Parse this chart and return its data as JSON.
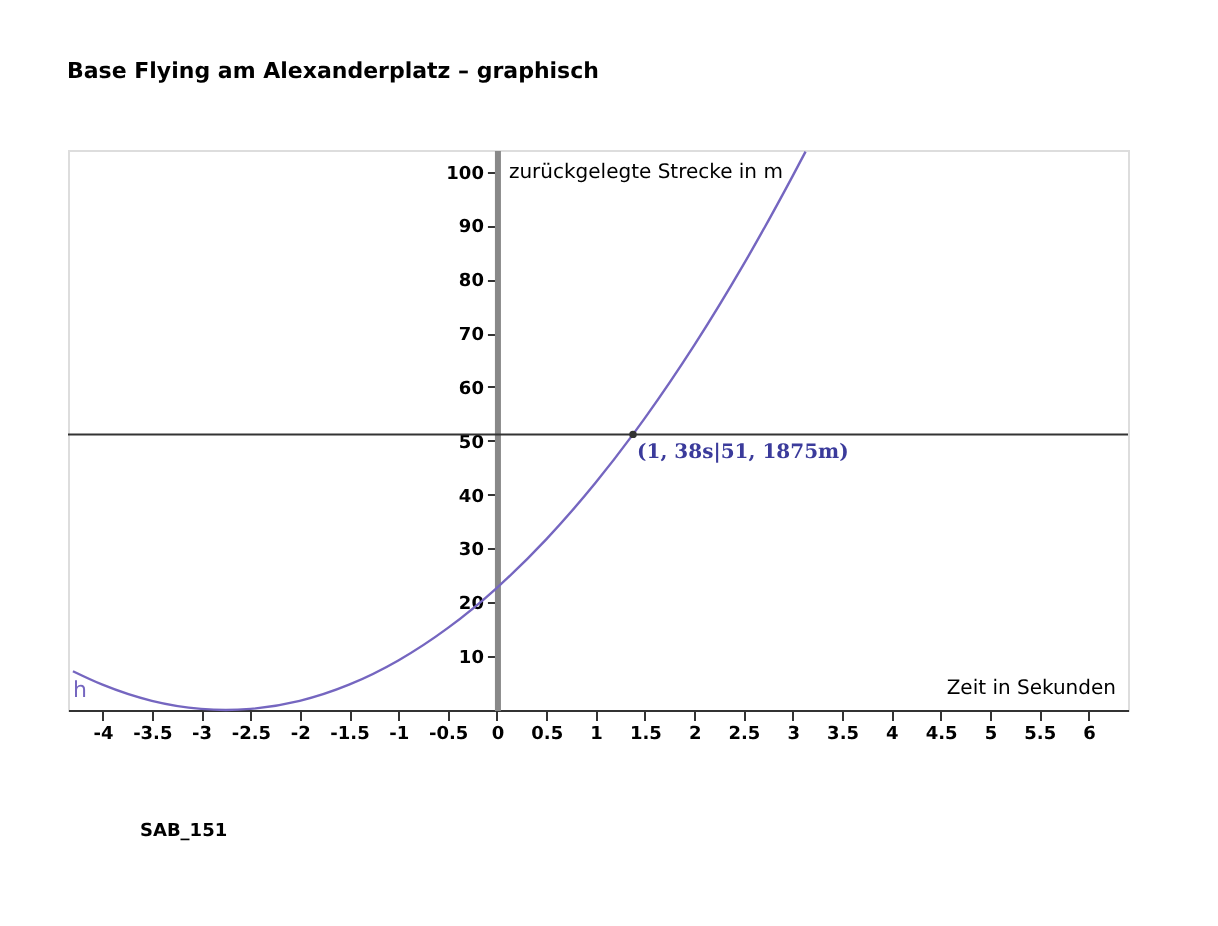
{
  "chart_data": {
    "type": "line",
    "title": "Base Flying am Alexanderplatz – graphisch",
    "xlabel": "Zeit in Sekunden",
    "ylabel": "zurückgelegte Strecke in m",
    "xlim": [
      -4.35,
      6.4
    ],
    "ylim": [
      0,
      104
    ],
    "xticks": [
      -4,
      -3.5,
      -3,
      -2.5,
      -2,
      -1.5,
      -1,
      -0.5,
      0,
      0.5,
      1,
      1.5,
      2,
      2.5,
      3,
      3.5,
      4,
      4.5,
      5,
      5.5,
      6
    ],
    "yticks": [
      10,
      20,
      30,
      40,
      50,
      60,
      70,
      80,
      90,
      100
    ],
    "grid": false,
    "series": [
      {
        "name": "h",
        "color": "#7566c0",
        "x": [
          -4.3,
          -4,
          -3.5,
          -3,
          -2.75,
          -2.5,
          -2,
          -1.5,
          -1,
          -0.5,
          0,
          0.5,
          1,
          1.38,
          1.5,
          2,
          2.5,
          3,
          3.13
        ],
        "values": [
          7.2,
          4.7,
          1.7,
          0.2,
          0,
          0.2,
          1.7,
          4.7,
          9.2,
          15.2,
          22.7,
          31.7,
          42.2,
          51.1875,
          54.2,
          67.7,
          82.7,
          99.2,
          103.7
        ]
      },
      {
        "type": "scatter",
        "color": "#333333",
        "marker": "circle",
        "x": [
          1.38
        ],
        "values": [
          51.1875
        ]
      }
    ],
    "ref_lines": [
      {
        "axis": "y",
        "value": 51.1875,
        "color": "#333333"
      }
    ],
    "annotations": [
      {
        "text": "(1, 38s|51, 1875m)",
        "x": 1.38,
        "y": 51.1875
      },
      "SAB_151"
    ]
  }
}
